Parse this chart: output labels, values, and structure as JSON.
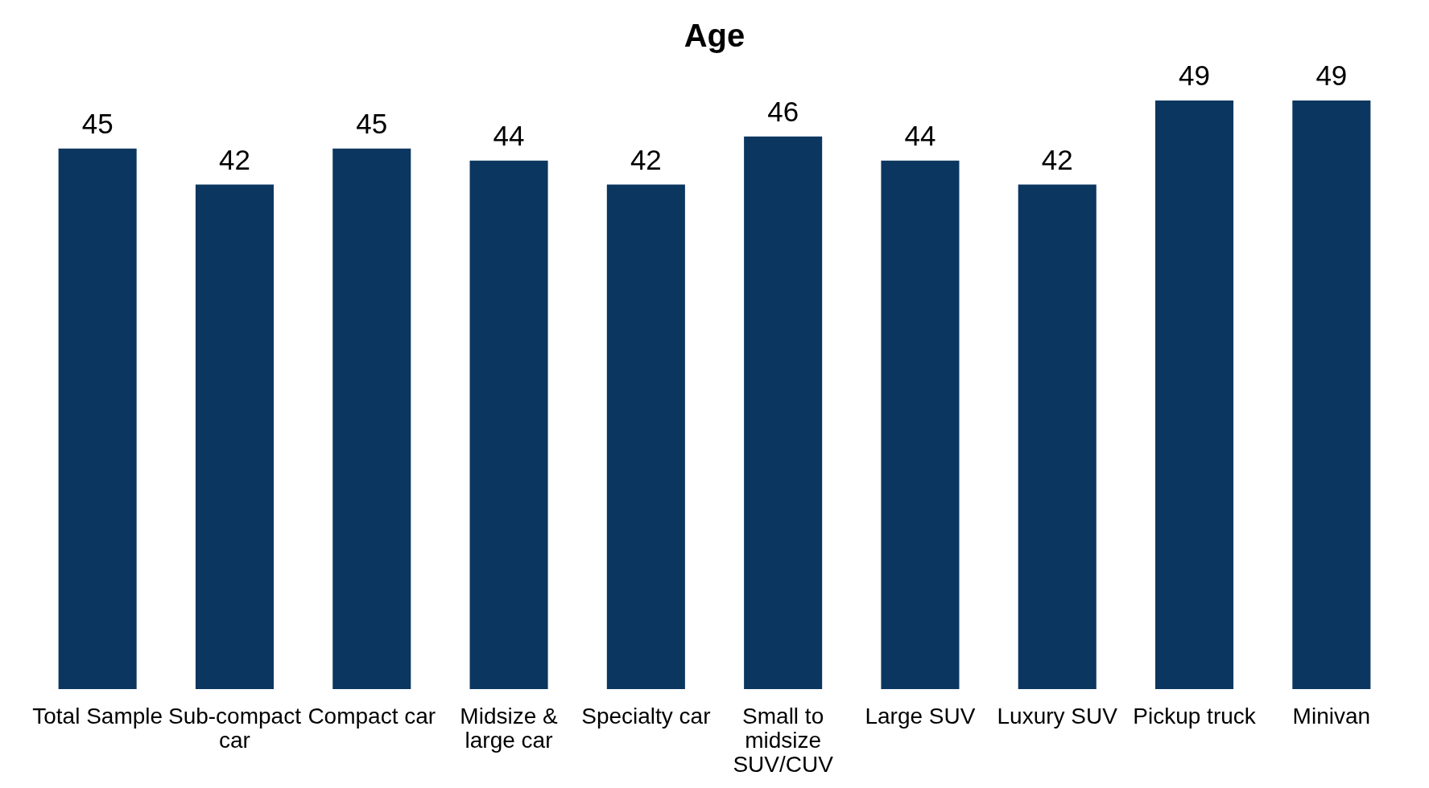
{
  "chart_data": {
    "type": "bar",
    "title": "Age",
    "categories": [
      "Total Sample",
      "Sub-compact car",
      "Compact car",
      "Midsize & large car",
      "Specialty car",
      "Small to midsize SUV/CUV",
      "Large SUV",
      "Luxury SUV",
      "Pickup truck",
      "Minivan"
    ],
    "values": [
      45,
      42,
      45,
      44,
      42,
      46,
      44,
      42,
      49,
      49
    ],
    "color": "#0b365f",
    "data_labels": true,
    "tick_labels": "x"
  }
}
